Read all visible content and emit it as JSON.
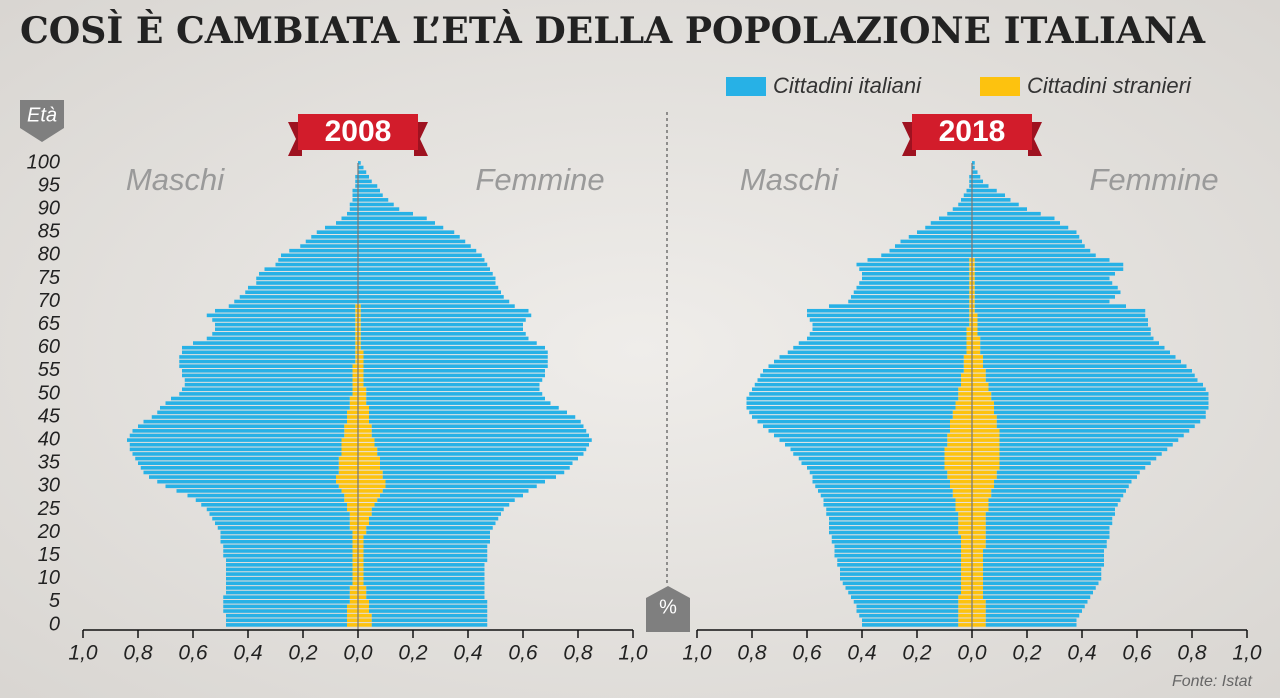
{
  "chart_data": {
    "type": "pyramid",
    "title": "COSÌ È CAMBIATA L’ETÀ DELLA POPOLAZIONE ITALIANA",
    "source": "Fonte: Istat",
    "y_label": "Età",
    "x_unit": "%",
    "left_label": "Maschi",
    "right_label": "Femmine",
    "legend": "top-right",
    "ylim": [
      0,
      100
    ],
    "yticks": [
      0,
      5,
      10,
      15,
      20,
      25,
      30,
      35,
      40,
      45,
      50,
      55,
      60,
      65,
      70,
      75,
      80,
      85,
      90,
      95,
      100
    ],
    "xlim": [
      0,
      1
    ],
    "xticks": [
      {
        "value": 0,
        "label": "0,0"
      },
      {
        "value": 0.2,
        "label": "0,2"
      },
      {
        "value": 0.4,
        "label": "0,4"
      },
      {
        "value": 0.6,
        "label": "0,6"
      },
      {
        "value": 0.8,
        "label": "0,8"
      },
      {
        "value": 1,
        "label": "1,0"
      }
    ],
    "series": [
      {
        "name": "Cittadini italiani",
        "color": "#27b1e6"
      },
      {
        "name": "Cittadini stranieri",
        "color": "#fdc20f"
      }
    ],
    "ages": [
      0,
      1,
      2,
      3,
      4,
      5,
      6,
      7,
      8,
      9,
      10,
      11,
      12,
      13,
      14,
      15,
      16,
      17,
      18,
      19,
      20,
      21,
      22,
      23,
      24,
      25,
      26,
      27,
      28,
      29,
      30,
      31,
      32,
      33,
      34,
      35,
      36,
      37,
      38,
      39,
      40,
      41,
      42,
      43,
      44,
      45,
      46,
      47,
      48,
      49,
      50,
      51,
      52,
      53,
      54,
      55,
      56,
      57,
      58,
      59,
      60,
      61,
      62,
      63,
      64,
      65,
      66,
      67,
      68,
      69,
      70,
      71,
      72,
      73,
      74,
      75,
      76,
      77,
      78,
      79,
      80,
      81,
      82,
      83,
      84,
      85,
      86,
      87,
      88,
      89,
      90,
      91,
      92,
      93,
      94,
      95,
      96,
      97,
      98,
      99,
      100
    ],
    "panels": [
      {
        "title": "2008",
        "male": [
          [
            0.44,
            0.44,
            0.44,
            0.45,
            0.45,
            0.46,
            0.46,
            0.45,
            0.45,
            0.46,
            0.46,
            0.46,
            0.46,
            0.46,
            0.46,
            0.47,
            0.47,
            0.47,
            0.48,
            0.48,
            0.48,
            0.48,
            0.49,
            0.5,
            0.51,
            0.51,
            0.53,
            0.54,
            0.57,
            0.6,
            0.63,
            0.65,
            0.68,
            0.71,
            0.72,
            0.73,
            0.74,
            0.76,
            0.77,
            0.77,
            0.78,
            0.78,
            0.77,
            0.75,
            0.74,
            0.71,
            0.69,
            0.69,
            0.67,
            0.65,
            0.63,
            0.62,
            0.61,
            0.61,
            0.62,
            0.62,
            0.63,
            0.64,
            0.64,
            0.63,
            0.63,
            0.59,
            0.54,
            0.52,
            0.51,
            0.51,
            0.52,
            0.54,
            0.51,
            0.46,
            0.45,
            0.43,
            0.41,
            0.4,
            0.37,
            0.37,
            0.36,
            0.34,
            0.3,
            0.29,
            0.28,
            0.25,
            0.21,
            0.19,
            0.17,
            0.15,
            0.12,
            0.08,
            0.06,
            0.04,
            0.03,
            0.03,
            0.02,
            0.02,
            0.02,
            0.01,
            0.01,
            0.01,
            0,
            0,
            0
          ],
          [
            0.04,
            0.04,
            0.04,
            0.04,
            0.04,
            0.03,
            0.03,
            0.03,
            0.03,
            0.02,
            0.02,
            0.02,
            0.02,
            0.02,
            0.02,
            0.02,
            0.02,
            0.02,
            0.02,
            0.02,
            0.02,
            0.03,
            0.03,
            0.03,
            0.03,
            0.04,
            0.04,
            0.05,
            0.05,
            0.06,
            0.07,
            0.08,
            0.08,
            0.07,
            0.07,
            0.07,
            0.07,
            0.06,
            0.06,
            0.06,
            0.06,
            0.05,
            0.05,
            0.05,
            0.04,
            0.04,
            0.04,
            0.03,
            0.03,
            0.03,
            0.02,
            0.02,
            0.02,
            0.02,
            0.02,
            0.02,
            0.02,
            0.01,
            0.01,
            0.01,
            0.01,
            0.01,
            0.01,
            0.01,
            0.01,
            0.01,
            0.01,
            0.01,
            0.01,
            0.01,
            0,
            0,
            0,
            0,
            0,
            0,
            0,
            0,
            0,
            0,
            0,
            0,
            0,
            0,
            0,
            0,
            0,
            0,
            0,
            0,
            0,
            0,
            0,
            0,
            0,
            0,
            0,
            0,
            0,
            0,
            0
          ]
        ],
        "female": [
          [
            0.42,
            0.42,
            0.42,
            0.43,
            0.43,
            0.43,
            0.43,
            0.43,
            0.43,
            0.44,
            0.44,
            0.44,
            0.44,
            0.44,
            0.45,
            0.45,
            0.45,
            0.45,
            0.46,
            0.46,
            0.45,
            0.46,
            0.46,
            0.47,
            0.47,
            0.48,
            0.49,
            0.5,
            0.52,
            0.53,
            0.55,
            0.58,
            0.63,
            0.66,
            0.69,
            0.7,
            0.72,
            0.75,
            0.76,
            0.78,
            0.79,
            0.79,
            0.78,
            0.77,
            0.77,
            0.75,
            0.72,
            0.69,
            0.67,
            0.65,
            0.64,
            0.63,
            0.64,
            0.65,
            0.66,
            0.66,
            0.67,
            0.67,
            0.67,
            0.67,
            0.67,
            0.64,
            0.61,
            0.6,
            0.59,
            0.59,
            0.6,
            0.62,
            0.61,
            0.56,
            0.55,
            0.53,
            0.52,
            0.51,
            0.5,
            0.5,
            0.49,
            0.48,
            0.47,
            0.46,
            0.45,
            0.43,
            0.41,
            0.39,
            0.37,
            0.35,
            0.31,
            0.28,
            0.25,
            0.2,
            0.15,
            0.13,
            0.11,
            0.09,
            0.08,
            0.07,
            0.05,
            0.04,
            0.03,
            0.02,
            0.01
          ],
          [
            0.05,
            0.05,
            0.05,
            0.04,
            0.04,
            0.04,
            0.03,
            0.03,
            0.03,
            0.02,
            0.02,
            0.02,
            0.02,
            0.02,
            0.02,
            0.02,
            0.02,
            0.02,
            0.02,
            0.02,
            0.03,
            0.03,
            0.04,
            0.04,
            0.05,
            0.05,
            0.06,
            0.07,
            0.08,
            0.09,
            0.1,
            0.1,
            0.09,
            0.09,
            0.08,
            0.08,
            0.08,
            0.07,
            0.07,
            0.06,
            0.06,
            0.05,
            0.05,
            0.05,
            0.04,
            0.04,
            0.04,
            0.04,
            0.03,
            0.03,
            0.03,
            0.03,
            0.02,
            0.02,
            0.02,
            0.02,
            0.02,
            0.02,
            0.02,
            0.02,
            0.01,
            0.01,
            0.01,
            0.01,
            0.01,
            0.01,
            0.01,
            0.01,
            0.01,
            0.01,
            0,
            0,
            0,
            0,
            0,
            0,
            0,
            0,
            0,
            0,
            0,
            0,
            0,
            0,
            0,
            0,
            0,
            0,
            0,
            0,
            0,
            0,
            0,
            0,
            0,
            0,
            0,
            0,
            0,
            0,
            0
          ]
        ]
      },
      {
        "title": "2018",
        "male": [
          [
            0.35,
            0.35,
            0.36,
            0.37,
            0.37,
            0.38,
            0.39,
            0.41,
            0.42,
            0.43,
            0.44,
            0.44,
            0.44,
            0.45,
            0.45,
            0.46,
            0.46,
            0.46,
            0.47,
            0.47,
            0.47,
            0.47,
            0.47,
            0.47,
            0.48,
            0.47,
            0.48,
            0.48,
            0.48,
            0.49,
            0.49,
            0.5,
            0.49,
            0.5,
            0.5,
            0.52,
            0.53,
            0.55,
            0.56,
            0.59,
            0.61,
            0.63,
            0.66,
            0.68,
            0.7,
            0.73,
            0.74,
            0.76,
            0.76,
            0.77,
            0.76,
            0.75,
            0.75,
            0.74,
            0.73,
            0.73,
            0.71,
            0.69,
            0.67,
            0.65,
            0.63,
            0.61,
            0.58,
            0.57,
            0.56,
            0.57,
            0.58,
            0.59,
            0.59,
            0.51,
            0.44,
            0.43,
            0.42,
            0.41,
            0.4,
            0.39,
            0.39,
            0.4,
            0.41,
            0.37,
            0.33,
            0.3,
            0.28,
            0.26,
            0.23,
            0.2,
            0.17,
            0.15,
            0.12,
            0.09,
            0.07,
            0.05,
            0.04,
            0.03,
            0.02,
            0.01,
            0.01,
            0.01,
            0,
            0,
            0
          ],
          [
            0.05,
            0.05,
            0.05,
            0.05,
            0.05,
            0.05,
            0.05,
            0.04,
            0.04,
            0.04,
            0.04,
            0.04,
            0.04,
            0.04,
            0.04,
            0.04,
            0.04,
            0.04,
            0.04,
            0.04,
            0.05,
            0.05,
            0.05,
            0.05,
            0.05,
            0.06,
            0.06,
            0.06,
            0.07,
            0.07,
            0.08,
            0.08,
            0.09,
            0.09,
            0.1,
            0.1,
            0.1,
            0.1,
            0.1,
            0.09,
            0.09,
            0.09,
            0.08,
            0.08,
            0.08,
            0.07,
            0.07,
            0.06,
            0.06,
            0.05,
            0.05,
            0.05,
            0.04,
            0.04,
            0.04,
            0.03,
            0.03,
            0.03,
            0.03,
            0.02,
            0.02,
            0.02,
            0.02,
            0.02,
            0.02,
            0.01,
            0.01,
            0.01,
            0.01,
            0.01,
            0.01,
            0.01,
            0.01,
            0.01,
            0.01,
            0.01,
            0.01,
            0.01,
            0.01,
            0.01,
            0,
            0,
            0,
            0,
            0,
            0,
            0,
            0,
            0,
            0,
            0,
            0,
            0,
            0,
            0,
            0,
            0,
            0,
            0,
            0,
            0
          ]
        ],
        "female": [
          [
            0.33,
            0.33,
            0.34,
            0.35,
            0.36,
            0.37,
            0.39,
            0.4,
            0.41,
            0.42,
            0.43,
            0.43,
            0.43,
            0.44,
            0.44,
            0.44,
            0.44,
            0.44,
            0.44,
            0.45,
            0.45,
            0.45,
            0.46,
            0.46,
            0.47,
            0.46,
            0.47,
            0.48,
            0.48,
            0.49,
            0.49,
            0.5,
            0.51,
            0.52,
            0.53,
            0.55,
            0.57,
            0.59,
            0.61,
            0.63,
            0.65,
            0.67,
            0.69,
            0.72,
            0.74,
            0.76,
            0.77,
            0.78,
            0.78,
            0.79,
            0.79,
            0.79,
            0.78,
            0.77,
            0.76,
            0.75,
            0.74,
            0.72,
            0.7,
            0.69,
            0.67,
            0.65,
            0.63,
            0.63,
            0.63,
            0.62,
            0.62,
            0.61,
            0.62,
            0.55,
            0.49,
            0.51,
            0.53,
            0.52,
            0.5,
            0.49,
            0.51,
            0.54,
            0.54,
            0.49,
            0.45,
            0.43,
            0.41,
            0.4,
            0.39,
            0.38,
            0.35,
            0.32,
            0.3,
            0.25,
            0.2,
            0.17,
            0.14,
            0.12,
            0.09,
            0.06,
            0.04,
            0.03,
            0.02,
            0.01,
            0.01
          ],
          [
            0.05,
            0.05,
            0.05,
            0.05,
            0.05,
            0.05,
            0.04,
            0.04,
            0.04,
            0.04,
            0.04,
            0.04,
            0.04,
            0.04,
            0.04,
            0.04,
            0.04,
            0.05,
            0.05,
            0.05,
            0.05,
            0.05,
            0.05,
            0.05,
            0.05,
            0.06,
            0.06,
            0.06,
            0.07,
            0.07,
            0.08,
            0.08,
            0.09,
            0.09,
            0.1,
            0.1,
            0.1,
            0.1,
            0.1,
            0.1,
            0.1,
            0.1,
            0.1,
            0.09,
            0.09,
            0.09,
            0.08,
            0.08,
            0.08,
            0.07,
            0.07,
            0.06,
            0.06,
            0.05,
            0.05,
            0.05,
            0.04,
            0.04,
            0.04,
            0.03,
            0.03,
            0.03,
            0.03,
            0.02,
            0.02,
            0.02,
            0.02,
            0.02,
            0.01,
            0.01,
            0.01,
            0.01,
            0.01,
            0.01,
            0.01,
            0.01,
            0.01,
            0.01,
            0.01,
            0.01,
            0,
            0,
            0,
            0,
            0,
            0,
            0,
            0,
            0,
            0,
            0,
            0,
            0,
            0,
            0,
            0,
            0,
            0,
            0,
            0,
            0
          ]
        ]
      }
    ]
  }
}
